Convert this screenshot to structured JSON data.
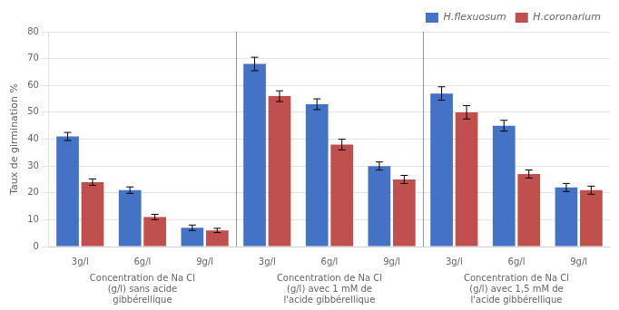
{
  "chart_data": {
    "type": "bar",
    "groups": [
      {
        "label": "Concentration de Na Cl\n(g/l) sans acide\ngibbérellique",
        "categories": [
          "3g/l",
          "6g/l",
          "9g/l"
        ]
      },
      {
        "label": "Concentration de Na Cl\n(g/l) avec 1 mM de\nl'acide gibbérellique",
        "categories": [
          "3g/l",
          "6g/l",
          "9g/l"
        ]
      },
      {
        "label": "Concentration de Na Cl\n(g/l) avec 1,5 mM de\nl'acide gibbérellique",
        "categories": [
          "3g/l",
          "6g/l",
          "9g/l"
        ]
      }
    ],
    "series": [
      {
        "name": "H.flexuosum",
        "color": "#4472C4",
        "values": [
          41,
          21,
          7,
          68,
          53,
          30,
          57,
          45,
          22
        ],
        "errors": [
          1.5,
          1.2,
          1.0,
          2.5,
          2.0,
          1.5,
          2.5,
          2.0,
          1.5
        ]
      },
      {
        "name": "H.coronarium",
        "color": "#C0504D",
        "values": [
          24,
          11,
          6,
          56,
          38,
          25,
          50,
          27,
          21
        ],
        "errors": [
          1.2,
          1.0,
          0.8,
          2.0,
          2.0,
          1.5,
          2.5,
          1.5,
          1.5
        ]
      }
    ],
    "ylabel": "Taux de girmination %",
    "ylim": [
      0,
      80
    ],
    "yticks": [
      0,
      10,
      20,
      30,
      40,
      50,
      60,
      70,
      80
    ],
    "grid": true,
    "legend": "upper right"
  }
}
